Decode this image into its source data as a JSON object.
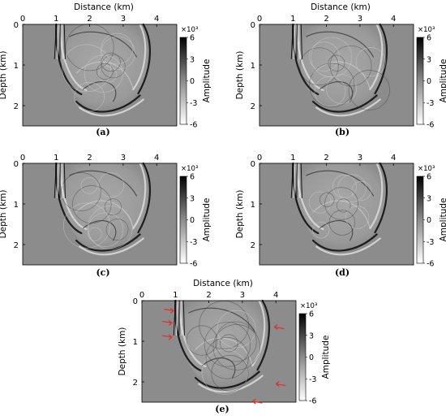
{
  "figure": {
    "xlabel": "Distance (km)",
    "ylabel": "Depth (km)",
    "colorbar_label": "Amplitude",
    "colorbar_exponent": "×10³",
    "colorbar_ticks": [
      "6",
      "3",
      "0",
      "-3",
      "-6"
    ],
    "x_ticks": [
      "0",
      "1",
      "2",
      "3",
      "4"
    ],
    "y_ticks": [
      "0",
      "1",
      "2"
    ],
    "background_color": "#8c8c8c",
    "arrow_color": "#e0312a"
  },
  "panels": [
    {
      "caption": "(a)",
      "show_xlabel": true
    },
    {
      "caption": "(b)",
      "show_xlabel": true
    },
    {
      "caption": "(c)",
      "show_xlabel": false
    },
    {
      "caption": "(d)",
      "show_xlabel": false
    },
    {
      "caption": "(e)",
      "show_xlabel": true,
      "arrows": true
    }
  ],
  "chart_data": [
    {
      "type": "heatmap",
      "title": "(a)",
      "xlabel": "Distance (km)",
      "ylabel": "Depth (km)",
      "xlim": [
        0,
        4.6
      ],
      "ylim": [
        2.5,
        0
      ],
      "colorbar": {
        "label": "Amplitude",
        "scale": "×10³",
        "range": [
          -6,
          6
        ],
        "ticks": [
          6,
          3,
          0,
          -3,
          -6
        ]
      }
    },
    {
      "type": "heatmap",
      "title": "(b)",
      "xlabel": "Distance (km)",
      "ylabel": "Depth (km)",
      "xlim": [
        0,
        4.6
      ],
      "ylim": [
        2.5,
        0
      ],
      "colorbar": {
        "label": "Amplitude",
        "scale": "×10³",
        "range": [
          -6,
          6
        ],
        "ticks": [
          6,
          3,
          0,
          -3,
          -6
        ]
      }
    },
    {
      "type": "heatmap",
      "title": "(c)",
      "xlabel": "",
      "ylabel": "Depth (km)",
      "xlim": [
        0,
        4.6
      ],
      "ylim": [
        2.5,
        0
      ],
      "colorbar": {
        "label": "Amplitude",
        "scale": "×10³",
        "range": [
          -6,
          6
        ],
        "ticks": [
          6,
          3,
          0,
          -3,
          -6
        ]
      }
    },
    {
      "type": "heatmap",
      "title": "(d)",
      "xlabel": "",
      "ylabel": "Depth (km)",
      "xlim": [
        0,
        4.6
      ],
      "ylim": [
        2.5,
        0
      ],
      "colorbar": {
        "label": "Amplitude",
        "scale": "×10³",
        "range": [
          -6,
          6
        ],
        "ticks": [
          6,
          3,
          0,
          -3,
          -6
        ]
      }
    },
    {
      "type": "heatmap",
      "title": "(e)",
      "xlabel": "Distance (km)",
      "ylabel": "Depth (km)",
      "xlim": [
        0,
        4.6
      ],
      "ylim": [
        2.5,
        0
      ],
      "colorbar": {
        "label": "Amplitude",
        "scale": "×10³",
        "range": [
          -6,
          6
        ],
        "ticks": [
          6,
          3,
          0,
          -3,
          -6
        ]
      }
    }
  ]
}
